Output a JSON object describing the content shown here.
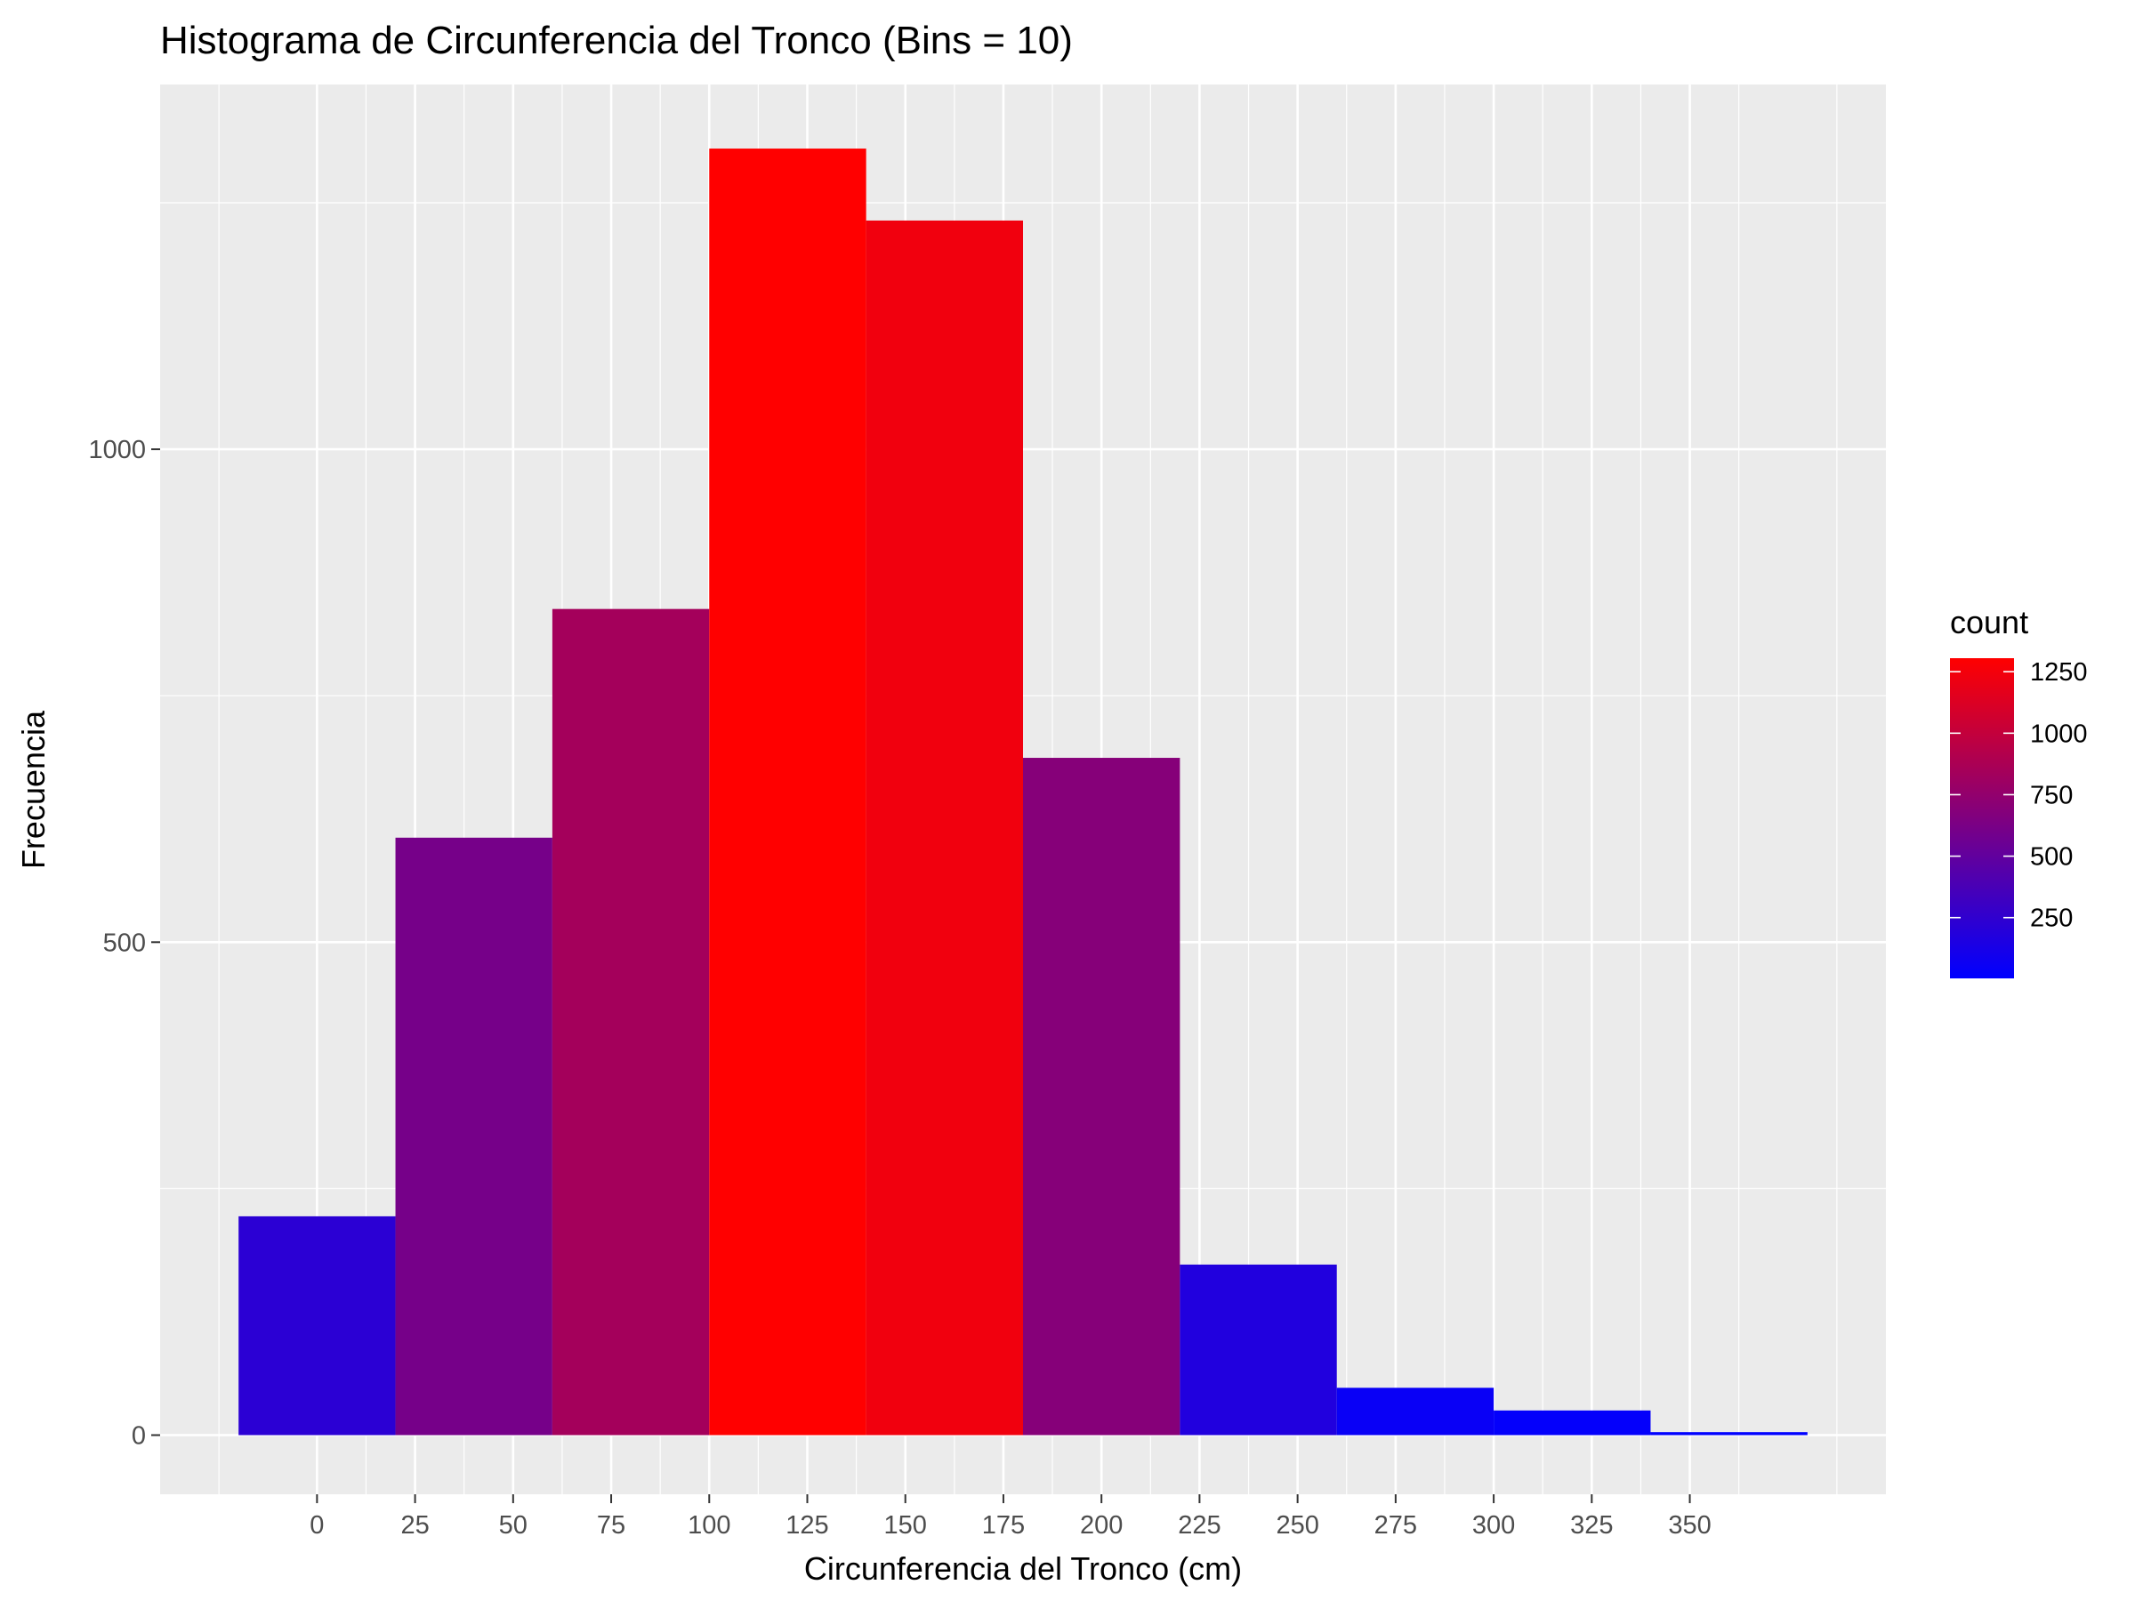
{
  "chart_data": {
    "type": "bar",
    "title": "Histograma de Circunferencia del Tronco (Bins = 10)",
    "xlabel": "Circunferencia del Tronco (cm)",
    "ylabel": "Frecuencia",
    "bins": [
      {
        "x0": -20,
        "x1": 20,
        "count": 222
      },
      {
        "x0": 20,
        "x1": 60,
        "count": 606
      },
      {
        "x0": 60,
        "x1": 100,
        "count": 838
      },
      {
        "x0": 100,
        "x1": 140,
        "count": 1305
      },
      {
        "x0": 140,
        "x1": 180,
        "count": 1232
      },
      {
        "x0": 180,
        "x1": 220,
        "count": 687
      },
      {
        "x0": 220,
        "x1": 260,
        "count": 173
      },
      {
        "x0": 260,
        "x1": 300,
        "count": 48
      },
      {
        "x0": 300,
        "x1": 340,
        "count": 25
      },
      {
        "x0": 340,
        "x1": 380,
        "count": 3
      }
    ],
    "xlim": [
      -40,
      400
    ],
    "ylim": [
      -60,
      1370
    ],
    "x_ticks": [
      0,
      25,
      50,
      75,
      100,
      125,
      150,
      175,
      200,
      225,
      250,
      275,
      300,
      325,
      350
    ],
    "x_tick_labels": [
      "0",
      "25",
      "50",
      "75",
      "100",
      "125",
      "150",
      "175",
      "200",
      "225",
      "250",
      "275",
      "300",
      "325",
      "350"
    ],
    "x_minor_ticks": [
      -25,
      12.5,
      37.5,
      62.5,
      87.5,
      112.5,
      137.5,
      162.5,
      187.5,
      212.5,
      237.5,
      262.5,
      287.5,
      312.5,
      337.5,
      362.5,
      387.5
    ],
    "y_ticks": [
      0,
      500,
      1000
    ],
    "y_tick_labels": [
      "0",
      "500",
      "1000"
    ],
    "y_minor_ticks": [
      250,
      750,
      1250
    ],
    "grid": true,
    "panel_background": "#ebebeb",
    "grid_color": "#ffffff",
    "legend": {
      "title": "count",
      "position": "right",
      "labels": [
        "250",
        "500",
        "750",
        "1000",
        "1250"
      ],
      "values": [
        250,
        500,
        750,
        1000,
        1250
      ],
      "min": 3,
      "max": 1305,
      "low_color": "#0000ff",
      "high_color": "#ff0000"
    }
  }
}
